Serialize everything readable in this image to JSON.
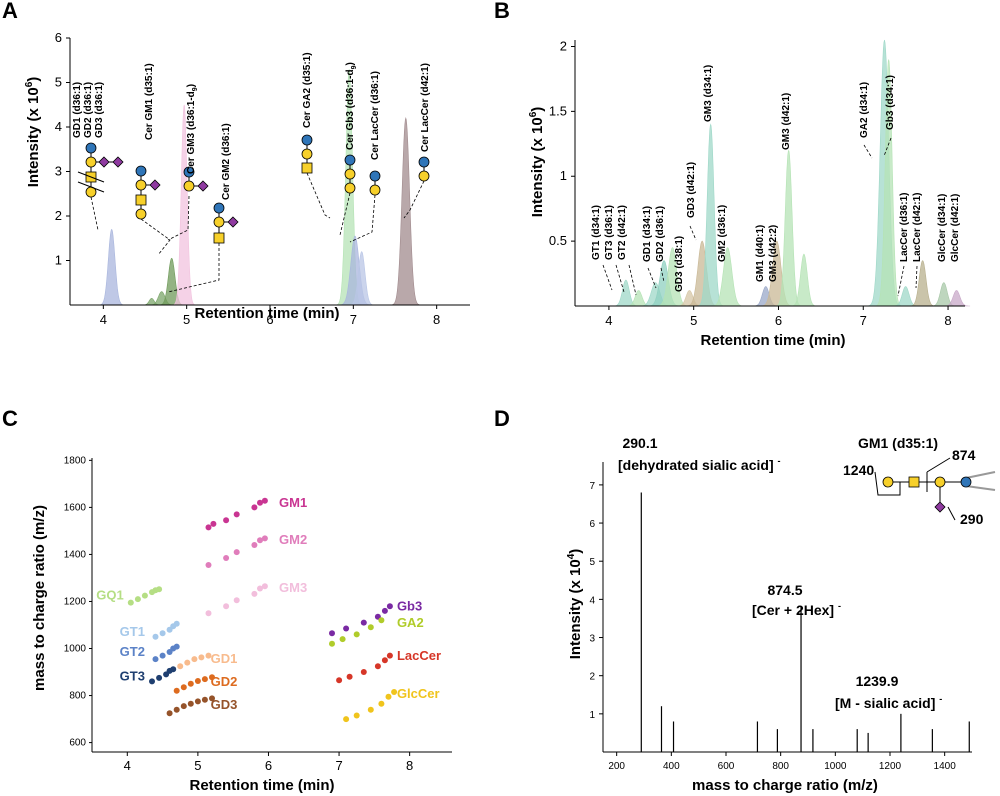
{
  "panels": {
    "a": {
      "letter": "A"
    },
    "b": {
      "letter": "B"
    },
    "c": {
      "letter": "C"
    },
    "d": {
      "letter": "D"
    }
  },
  "chart_data": [
    {
      "panel": "A",
      "type": "area",
      "xlabel": "Retention time (min)",
      "ylabel": "Intensity (x 10^6)",
      "ylabel_parts": {
        "main": "Intensity (x 10",
        "sup": "6",
        "close": ")"
      },
      "xlim": [
        3.6,
        8.4
      ],
      "ylim": [
        0,
        6
      ],
      "xticks": [
        4,
        5,
        6,
        7,
        8
      ],
      "yticks": [
        1,
        2,
        3,
        4,
        5,
        6
      ],
      "peaks": [
        {
          "rt": 4.1,
          "height": 1.7,
          "width": 0.04,
          "color": "#a9b6dd"
        },
        {
          "rt": 4.58,
          "height": 0.15,
          "width": 0.03,
          "color": "#7ba56a"
        },
        {
          "rt": 4.7,
          "height": 0.3,
          "width": 0.04,
          "color": "#7ba56a"
        },
        {
          "rt": 4.82,
          "height": 1.05,
          "width": 0.04,
          "color": "#6f9a5a"
        },
        {
          "rt": 4.97,
          "height": 4.5,
          "width": 0.035,
          "color": "#f2c3df"
        },
        {
          "rt": 6.95,
          "height": 5.3,
          "width": 0.04,
          "color": "#b5e3b5"
        },
        {
          "rt": 7.02,
          "height": 1.55,
          "width": 0.05,
          "color": "#a9b6dd"
        },
        {
          "rt": 7.1,
          "height": 1.2,
          "width": 0.04,
          "color": "#b9c6e6"
        },
        {
          "rt": 7.63,
          "height": 4.2,
          "width": 0.045,
          "color": "#a18b8e"
        }
      ],
      "labels": [
        {
          "text": "GD1 (d36:1)"
        },
        {
          "text": "GD2 (d36:1)"
        },
        {
          "text": "GD3 (d36:1)"
        },
        {
          "text": "Cer GM1 (d35:1)"
        },
        {
          "text": "Cer GM3 (d36:1-d",
          "sub": "9",
          "close": ")"
        },
        {
          "text": "Cer GM2 (d36:1)"
        },
        {
          "text": "Cer GA2 (d35:1)"
        },
        {
          "text": "Cer Gb3 (d36:1-d",
          "sub": "9",
          "close": ")"
        },
        {
          "text": "Cer LacCer (d36:1)"
        },
        {
          "text": "Cer LacCer (d42:1)"
        }
      ]
    },
    {
      "panel": "B",
      "type": "area",
      "xlabel": "Retention time (min)",
      "ylabel": "Intensity (x 10^6)",
      "ylabel_parts": {
        "main": "Intensity (x 10",
        "sup": "6",
        "close": ")"
      },
      "xlim": [
        3.6,
        8.2
      ],
      "ylim": [
        0,
        2.05
      ],
      "xticks": [
        4,
        5,
        6,
        7,
        8
      ],
      "yticks": [
        0.5,
        1,
        1.5,
        2
      ],
      "ytick_labels": [
        "0.5",
        "1",
        "1.5",
        "2"
      ],
      "peaks": [
        {
          "rt": 4.2,
          "height": 0.2,
          "width": 0.04,
          "color": "#9fd8c8"
        },
        {
          "rt": 4.35,
          "height": 0.12,
          "width": 0.04,
          "color": "#b5e3b5"
        },
        {
          "rt": 4.55,
          "height": 0.18,
          "width": 0.05,
          "color": "#9fd8c8"
        },
        {
          "rt": 4.65,
          "height": 0.35,
          "width": 0.05,
          "color": "#8fd0c0"
        },
        {
          "rt": 4.75,
          "height": 0.45,
          "width": 0.05,
          "color": "#b5e3b5"
        },
        {
          "rt": 4.95,
          "height": 0.12,
          "width": 0.04,
          "color": "#d6c6a6"
        },
        {
          "rt": 5.1,
          "height": 0.5,
          "width": 0.05,
          "color": "#c9b896"
        },
        {
          "rt": 5.2,
          "height": 1.4,
          "width": 0.04,
          "color": "#9fd8c8"
        },
        {
          "rt": 5.4,
          "height": 0.45,
          "width": 0.05,
          "color": "#b5e3b5"
        },
        {
          "rt": 5.85,
          "height": 0.15,
          "width": 0.04,
          "color": "#9aa8c8"
        },
        {
          "rt": 5.98,
          "height": 0.5,
          "width": 0.05,
          "color": "#c9b896"
        },
        {
          "rt": 6.12,
          "height": 1.2,
          "width": 0.04,
          "color": "#b5e3b5"
        },
        {
          "rt": 6.3,
          "height": 0.4,
          "width": 0.04,
          "color": "#b5e3b5"
        },
        {
          "rt": 7.25,
          "height": 2.05,
          "width": 0.05,
          "color": "#9fd8c8"
        },
        {
          "rt": 7.3,
          "height": 1.9,
          "width": 0.04,
          "color": "#b5e3b5"
        },
        {
          "rt": 7.5,
          "height": 0.15,
          "width": 0.04,
          "color": "#9fd8c8"
        },
        {
          "rt": 7.7,
          "height": 0.35,
          "width": 0.04,
          "color": "#b8b08e"
        },
        {
          "rt": 7.95,
          "height": 0.18,
          "width": 0.04,
          "color": "#a8c8a8"
        },
        {
          "rt": 8.1,
          "height": 0.12,
          "width": 0.04,
          "color": "#c8a8c8"
        }
      ],
      "labels": [
        {
          "text": "GT1 (d34:1)"
        },
        {
          "text": "GT3 (d36:1)"
        },
        {
          "text": "GT2 (d42:1)"
        },
        {
          "text": "GD1 (d34:1)"
        },
        {
          "text": "GD2 (d36:1)"
        },
        {
          "text": "GD3 (d38:1)"
        },
        {
          "text": "GD3 (d42:1)"
        },
        {
          "text": "GM3 (d34:1)"
        },
        {
          "text": "GM2 (d36:1)"
        },
        {
          "text": "GM1 (d40:1)"
        },
        {
          "text": "GM3 (d42:2)"
        },
        {
          "text": "GM3 (d42:1)"
        },
        {
          "text": "GA2 (d34:1)"
        },
        {
          "text": "Gb3 (d34:1)"
        },
        {
          "text": "LacCer (d36:1)"
        },
        {
          "text": "LacCer (d42:1)"
        },
        {
          "text": "GlcCer (d34:1)"
        },
        {
          "text": "GlcCer (d42:1)"
        }
      ]
    },
    {
      "panel": "C",
      "type": "scatter",
      "xlabel": "Retention time (min)",
      "ylabel": "mass to charge ratio (m/z)",
      "xlim": [
        3.5,
        8.6
      ],
      "ylim": [
        560,
        1810
      ],
      "xticks": [
        4,
        5,
        6,
        7,
        8
      ],
      "yticks": [
        600,
        800,
        1000,
        1200,
        1400,
        1600,
        1800
      ],
      "series": [
        {
          "name": "GM1",
          "color": "#c93592",
          "x": [
            5.15,
            5.22,
            5.4,
            5.55,
            5.8,
            5.88,
            5.95
          ],
          "y": [
            1515,
            1530,
            1545,
            1570,
            1600,
            1620,
            1628
          ]
        },
        {
          "name": "GM2",
          "color": "#e07dbb",
          "x": [
            5.15,
            5.4,
            5.55,
            5.8,
            5.88,
            5.95
          ],
          "y": [
            1355,
            1385,
            1410,
            1440,
            1460,
            1468
          ]
        },
        {
          "name": "GM3",
          "color": "#f2bedc",
          "x": [
            5.15,
            5.4,
            5.55,
            5.8,
            5.88,
            5.95
          ],
          "y": [
            1150,
            1180,
            1205,
            1232,
            1255,
            1265
          ]
        },
        {
          "name": "GQ1",
          "color": "#b5de84",
          "x": [
            4.05,
            4.15,
            4.25,
            4.35,
            4.4,
            4.45
          ],
          "y": [
            1195,
            1210,
            1225,
            1240,
            1248,
            1252
          ]
        },
        {
          "name": "GT1",
          "color": "#a5c8ea",
          "x": [
            4.4,
            4.5,
            4.6,
            4.65,
            4.7
          ],
          "y": [
            1050,
            1065,
            1080,
            1095,
            1105
          ]
        },
        {
          "name": "GT2",
          "color": "#5b82c7",
          "x": [
            4.4,
            4.5,
            4.6,
            4.65,
            4.7
          ],
          "y": [
            955,
            970,
            985,
            1000,
            1008
          ]
        },
        {
          "name": "GT3",
          "color": "#1f3f70",
          "x": [
            4.35,
            4.45,
            4.55,
            4.6,
            4.65
          ],
          "y": [
            860,
            875,
            890,
            905,
            912
          ]
        },
        {
          "name": "GD1",
          "color": "#f8bb8d",
          "x": [
            4.75,
            4.85,
            4.95,
            5.05,
            5.15
          ],
          "y": [
            925,
            940,
            955,
            962,
            970
          ]
        },
        {
          "name": "GD2",
          "color": "#dd6b1f",
          "x": [
            4.7,
            4.8,
            4.9,
            5.0,
            5.1,
            5.2
          ],
          "y": [
            820,
            835,
            850,
            862,
            870,
            878
          ]
        },
        {
          "name": "GD3",
          "color": "#95532a",
          "x": [
            4.6,
            4.7,
            4.8,
            4.9,
            5.0,
            5.1,
            5.2
          ],
          "y": [
            725,
            740,
            755,
            765,
            775,
            782,
            788
          ]
        },
        {
          "name": "Gb3",
          "color": "#7a2aa3",
          "x": [
            6.9,
            7.1,
            7.35,
            7.55,
            7.65,
            7.72
          ],
          "y": [
            1065,
            1085,
            1110,
            1135,
            1160,
            1180
          ]
        },
        {
          "name": "GA2",
          "color": "#b0cc2a",
          "x": [
            6.9,
            7.05,
            7.25,
            7.45,
            7.6
          ],
          "y": [
            1020,
            1040,
            1060,
            1090,
            1120
          ]
        },
        {
          "name": "LacCer",
          "color": "#d63628",
          "x": [
            7.0,
            7.15,
            7.35,
            7.55,
            7.65,
            7.72
          ],
          "y": [
            865,
            880,
            900,
            925,
            950,
            970
          ]
        },
        {
          "name": "GlcCer",
          "color": "#f0c41c",
          "x": [
            7.1,
            7.25,
            7.45,
            7.6,
            7.7,
            7.78
          ],
          "y": [
            700,
            715,
            740,
            765,
            795,
            815
          ]
        }
      ]
    },
    {
      "panel": "D",
      "type": "bar",
      "xlabel": "mass to charge ratio (m/z)",
      "ylabel": "Intensity (x 10^4)",
      "ylabel_parts": {
        "main": "Intensity (x 10",
        "sup": "4",
        "close": ")"
      },
      "xlim": [
        150,
        1500
      ],
      "ylim": [
        0,
        7.6
      ],
      "xticks": [
        200,
        400,
        600,
        800,
        1000,
        1200,
        1400
      ],
      "yticks": [
        1,
        2,
        3,
        4,
        5,
        6,
        7
      ],
      "mz": [
        290.1,
        364,
        408,
        715,
        788,
        874.5,
        918,
        1080,
        1120,
        1239.9,
        1355,
        1490
      ],
      "intensity": [
        6.8,
        1.2,
        0.8,
        0.8,
        0.6,
        3.8,
        0.6,
        0.6,
        0.5,
        1.0,
        0.6,
        0.8
      ],
      "annotations": [
        {
          "value": "290.1",
          "label": "[dehydrated sialic acid]",
          "sup": "-"
        },
        {
          "value": "874.5",
          "label": "[Cer + 2Hex]",
          "sup": "-"
        },
        {
          "value": "1239.9",
          "label": "[M - sialic acid]",
          "sup": "-"
        }
      ],
      "inset": {
        "title": "GM1 (d35:1)",
        "title_color": "#d4208a",
        "fragments": [
          "874",
          "1240",
          "290"
        ]
      }
    }
  ]
}
